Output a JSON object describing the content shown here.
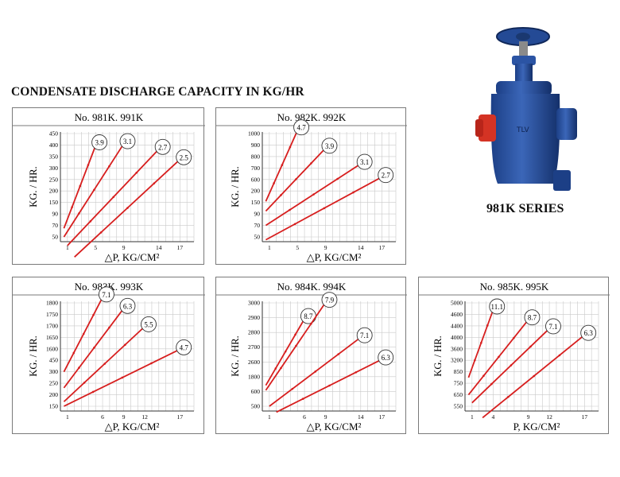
{
  "heading": "CONDENSATE DISCHARGE CAPACITY IN KG/HR",
  "product": {
    "label": "981K SERIES"
  },
  "colors": {
    "line": "#d71e1e",
    "grid": "#c9c9c9",
    "border": "#7a7a7a"
  },
  "chart_data": [
    {
      "type": "line",
      "title": "No. 981K. 991K",
      "xlabel": "△P,  KG/CM²",
      "ylabel": "KG. / HR.",
      "x_ticks": [
        1,
        5,
        9,
        14,
        17
      ],
      "y_ticks": [
        50,
        70,
        90,
        150,
        200,
        250,
        300,
        350,
        400,
        450
      ],
      "series": [
        {
          "name": "3.9",
          "x": [
            0.5,
            5.1
          ],
          "y": [
            65,
            405
          ]
        },
        {
          "name": "3.1",
          "x": [
            0.5,
            9.1
          ],
          "y": [
            50,
            410
          ]
        },
        {
          "name": "2.7",
          "x": [
            1.0,
            14.1
          ],
          "y": [
            35,
            385
          ]
        },
        {
          "name": "2.5",
          "x": [
            2.0,
            17.1
          ],
          "y": [
            15,
            340
          ]
        }
      ]
    },
    {
      "type": "line",
      "title": "No. 982K. 992K",
      "xlabel": "△P,  KG/CM²",
      "ylabel": "KG. / HR.",
      "x_ticks": [
        1,
        5,
        9,
        14,
        17
      ],
      "y_ticks": [
        50,
        70,
        90,
        150,
        200,
        600,
        700,
        800,
        900,
        1000
      ],
      "series": [
        {
          "name": "4.7",
          "x": [
            0.5,
            5.1
          ],
          "y": [
            155,
            1040
          ]
        },
        {
          "name": "3.9",
          "x": [
            0.5,
            9.1
          ],
          "y": [
            105,
            880
          ]
        },
        {
          "name": "3.1",
          "x": [
            0.5,
            14.1
          ],
          "y": [
            70,
            740
          ]
        },
        {
          "name": "2.7",
          "x": [
            0.5,
            17.1
          ],
          "y": [
            45,
            625
          ]
        }
      ]
    },
    {
      "type": "line",
      "title": "No. 983K.  993K",
      "xlabel": "△P,  KG/CM²",
      "ylabel": "KG. / HR.",
      "x_ticks": [
        1,
        6,
        9,
        12,
        17
      ],
      "y_ticks": [
        150,
        200,
        250,
        300,
        450,
        1600,
        1650,
        1700,
        1750,
        1800
      ],
      "series": [
        {
          "name": "7.1",
          "x": [
            0.5,
            6.1
          ],
          "y": [
            300,
            1830
          ]
        },
        {
          "name": "6.3",
          "x": [
            0.5,
            9.1
          ],
          "y": [
            230,
            1780
          ]
        },
        {
          "name": "5.5",
          "x": [
            0.5,
            12.1
          ],
          "y": [
            170,
            1700
          ]
        },
        {
          "name": "4.7",
          "x": [
            0.5,
            17.1
          ],
          "y": [
            150,
            1590
          ]
        }
      ]
    },
    {
      "type": "line",
      "title": "No. 984K.  994K",
      "xlabel": "△P,  KG/CM²",
      "ylabel": "KG. / HR.",
      "x_ticks": [
        1,
        6,
        9,
        14,
        17
      ],
      "y_ticks": [
        500,
        600,
        1800,
        2600,
        2700,
        2800,
        2900,
        3000
      ],
      "series": [
        {
          "name": "8.7",
          "x": [
            0.5,
            6.1
          ],
          "y": [
            1100,
            2900
          ]
        },
        {
          "name": "7.9",
          "x": [
            0.5,
            9.1
          ],
          "y": [
            700,
            3010
          ]
        },
        {
          "name": "7.1",
          "x": [
            1.0,
            14.1
          ],
          "y": [
            500,
            2770
          ]
        },
        {
          "name": "6.3",
          "x": [
            2.0,
            17.1
          ],
          "y": [
            460,
            2620
          ]
        }
      ]
    },
    {
      "type": "line",
      "title": "No. 985K.  995K",
      "xlabel": "P,  KG/CM²",
      "ylabel": "KG. / HR.",
      "x_ticks": [
        1,
        4,
        9,
        12,
        17
      ],
      "y_ticks": [
        550,
        650,
        750,
        850,
        3200,
        3600,
        4000,
        4400,
        4600,
        5000
      ],
      "series": [
        {
          "name": "11.1",
          "x": [
            0.5,
            4.1
          ],
          "y": [
            800,
            4820
          ]
        },
        {
          "name": "8.7",
          "x": [
            0.5,
            9.1
          ],
          "y": [
            650,
            4520
          ]
        },
        {
          "name": "7.1",
          "x": [
            1.0,
            12.1
          ],
          "y": [
            580,
            4330
          ]
        },
        {
          "name": "6.3",
          "x": [
            2.5,
            17.1
          ],
          "y": [
            450,
            4100
          ]
        }
      ]
    }
  ]
}
